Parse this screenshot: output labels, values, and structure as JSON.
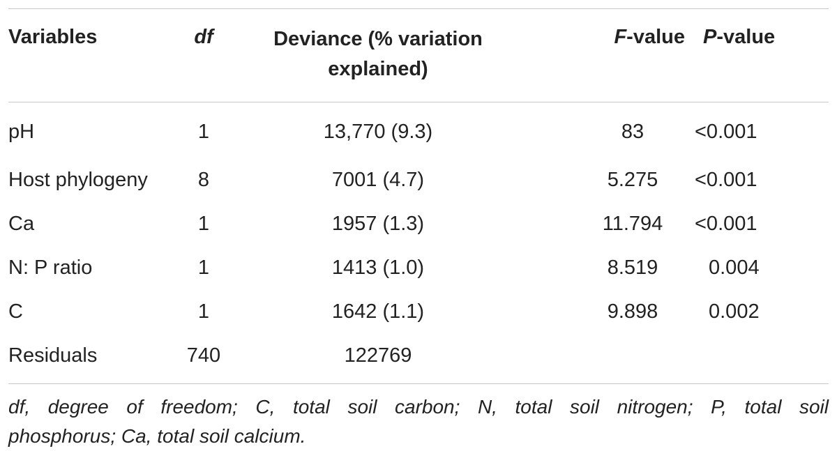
{
  "table": {
    "headers": {
      "variables": "Variables",
      "df": "df",
      "deviance": "Deviance (% variation explained)",
      "f_italic": "F",
      "f_rest": "-value",
      "p_italic": "P",
      "p_rest": "-value"
    },
    "rows": [
      {
        "variable": "pH",
        "df": "1",
        "deviance": "13,770 (9.3)",
        "f": "83",
        "p": "<0.001"
      },
      {
        "variable": "Host phylogeny",
        "df": "8",
        "deviance": "7001 (4.7)",
        "f": "5.275",
        "p": "<0.001"
      },
      {
        "variable": "Ca",
        "df": "1",
        "deviance": "1957 (1.3)",
        "f": "11.794",
        "p": "<0.001"
      },
      {
        "variable": "N: P ratio",
        "df": "1",
        "deviance": "1413 (1.0)",
        "f": "8.519",
        "p": "0.004"
      },
      {
        "variable": "C",
        "df": "1",
        "deviance": "1642 (1.1)",
        "f": "9.898",
        "p": "0.002"
      },
      {
        "variable": "Residuals",
        "df": "740",
        "deviance": "122769",
        "f": "",
        "p": ""
      }
    ]
  },
  "footnote": {
    "line1": "df, degree of freedom; C, total soil carbon; N, total soil nitrogen; P, total soil",
    "line2": "phosphorus; Ca, total soil calcium."
  }
}
